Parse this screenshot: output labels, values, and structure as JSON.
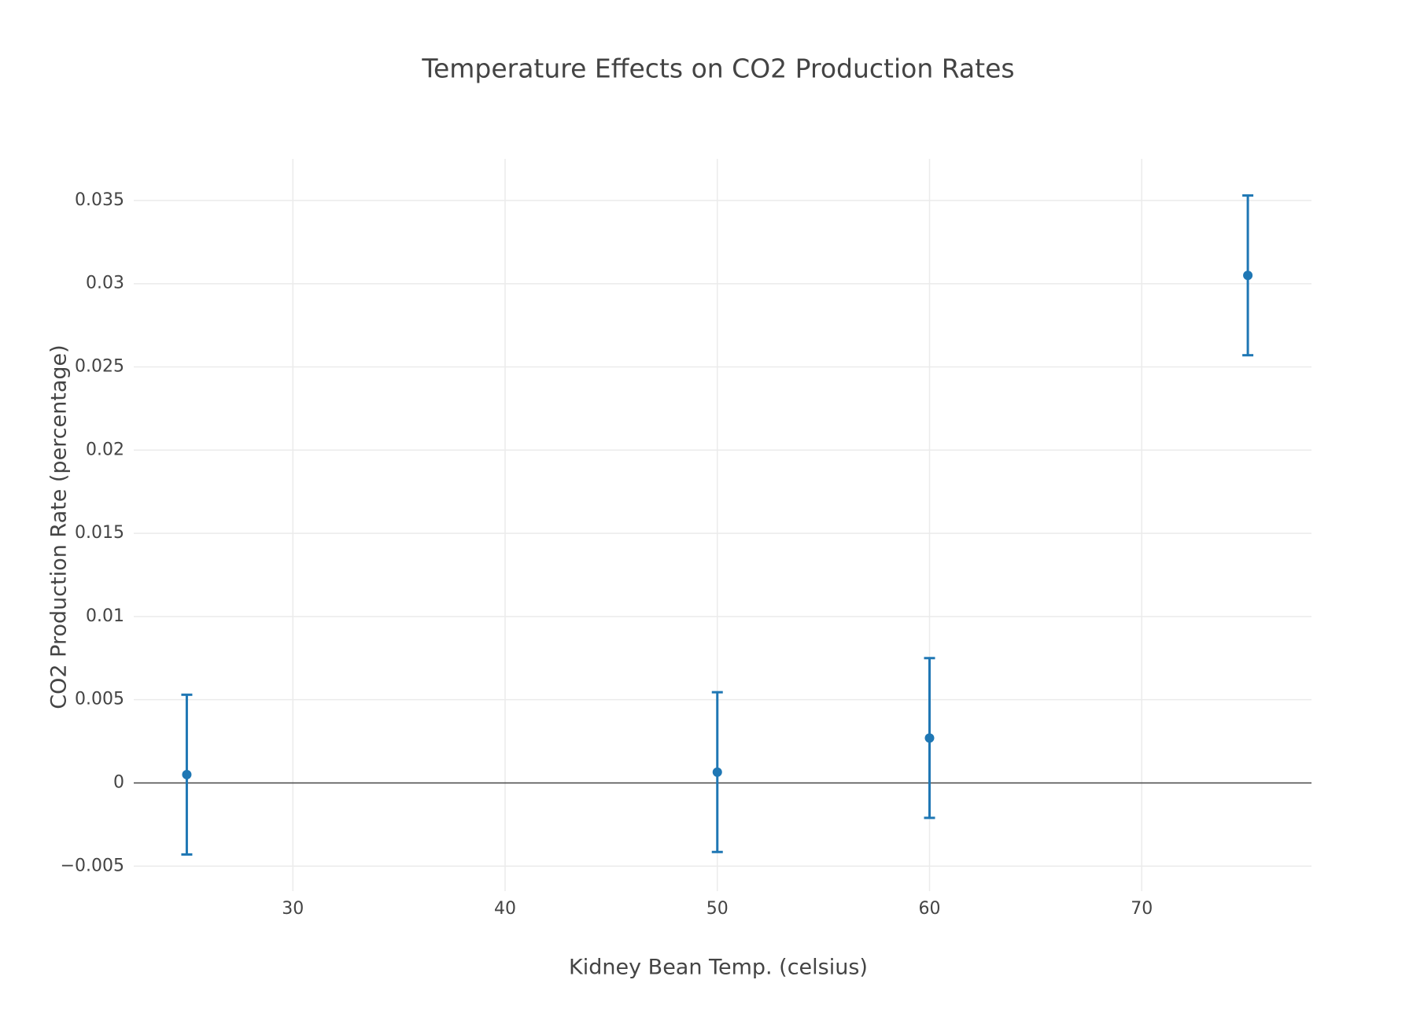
{
  "chart_data": {
    "type": "scatter",
    "title": "Temperature Effects on CO2 Production Rates",
    "xlabel": "Kidney Bean Temp. (celsius)",
    "ylabel": "CO2 Production Rate (percentage)",
    "xlim": [
      22.5,
      78
    ],
    "ylim": [
      -0.0065,
      0.0375
    ],
    "x_ticks": [
      30,
      40,
      50,
      60,
      70
    ],
    "x_tick_labels": [
      "30",
      "40",
      "50",
      "60",
      "70"
    ],
    "y_ticks": [
      -0.005,
      0,
      0.005,
      0.01,
      0.015,
      0.02,
      0.025,
      0.03,
      0.035
    ],
    "y_tick_labels": [
      "−0.005",
      "0",
      "0.005",
      "0.01",
      "0.015",
      "0.02",
      "0.025",
      "0.03",
      "0.035"
    ],
    "grid": true,
    "zeroline": true,
    "legend": false,
    "series": [
      {
        "color": "#1f77b4",
        "x": [
          25,
          50,
          60,
          75
        ],
        "y": [
          0.0005,
          0.00065,
          0.0027,
          0.0305
        ],
        "error_y": [
          0.0048,
          0.0048,
          0.0048,
          0.0048
        ]
      }
    ]
  }
}
